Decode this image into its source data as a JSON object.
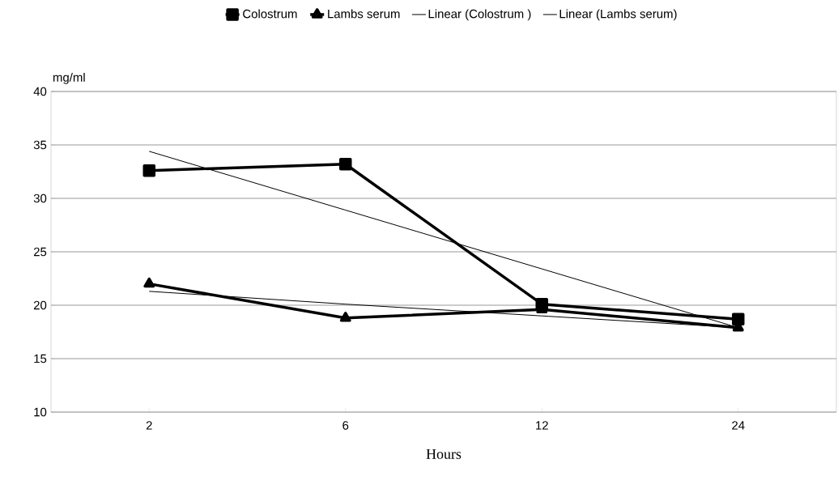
{
  "chart_data": {
    "type": "line",
    "xlabel": "Hours",
    "ylabel": "mg/ml",
    "categories": [
      "2",
      "6",
      "12",
      "24"
    ],
    "series": [
      {
        "name": "Colostrum",
        "color": "#000000",
        "marker": "square",
        "values": [
          32.6,
          33.2,
          20.1,
          18.7
        ]
      },
      {
        "name": "Lambs serum",
        "color": "#000000",
        "marker": "triangle",
        "values": [
          22.0,
          18.8,
          19.6,
          17.9
        ]
      },
      {
        "name": "Linear (Colostrum )",
        "color": "#000000",
        "marker": "none",
        "values": [
          34.4,
          28.9,
          23.4,
          17.9
        ]
      },
      {
        "name": "Linear (Lambs serum)",
        "color": "#000000",
        "marker": "none",
        "values": [
          21.3,
          20.1,
          19.0,
          17.9
        ]
      }
    ],
    "ylim": [
      10,
      40
    ],
    "yticks": [
      10,
      15,
      20,
      25,
      30,
      35,
      40
    ],
    "grid": "y",
    "legend": "top",
    "line_style": "solid"
  }
}
